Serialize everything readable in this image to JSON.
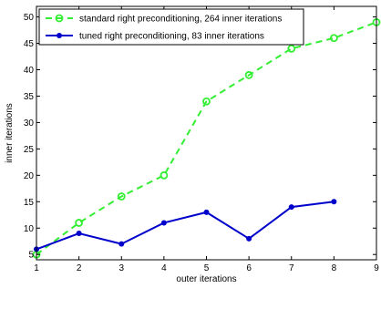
{
  "chart_data": {
    "type": "line",
    "xlabel": "outer iterations",
    "ylabel": "inner iterations",
    "xlim": [
      1,
      9
    ],
    "ylim": [
      4,
      52
    ],
    "xticks": [
      1,
      2,
      3,
      4,
      5,
      6,
      7,
      8,
      9
    ],
    "yticks": [
      5,
      10,
      15,
      20,
      25,
      30,
      35,
      40,
      45,
      50
    ],
    "grid": false,
    "legend_position": "top-left",
    "series": [
      {
        "name": "standard right preconditioning, 264 inner iterations",
        "color": "#33ee33",
        "line_style": "dashed",
        "marker": "open-circle",
        "x": [
          1,
          2,
          3,
          4,
          5,
          6,
          7,
          8,
          9
        ],
        "y": [
          5,
          11,
          16,
          20,
          34,
          39,
          44,
          46,
          49
        ]
      },
      {
        "name": "tuned right preconditioning, 83 inner iterations",
        "color": "#0000cc",
        "line_style": "solid",
        "marker": "filled-dot",
        "x": [
          1,
          2,
          3,
          4,
          5,
          6,
          7,
          8
        ],
        "y": [
          6,
          9,
          7,
          11,
          13,
          8,
          14,
          15
        ]
      }
    ]
  }
}
